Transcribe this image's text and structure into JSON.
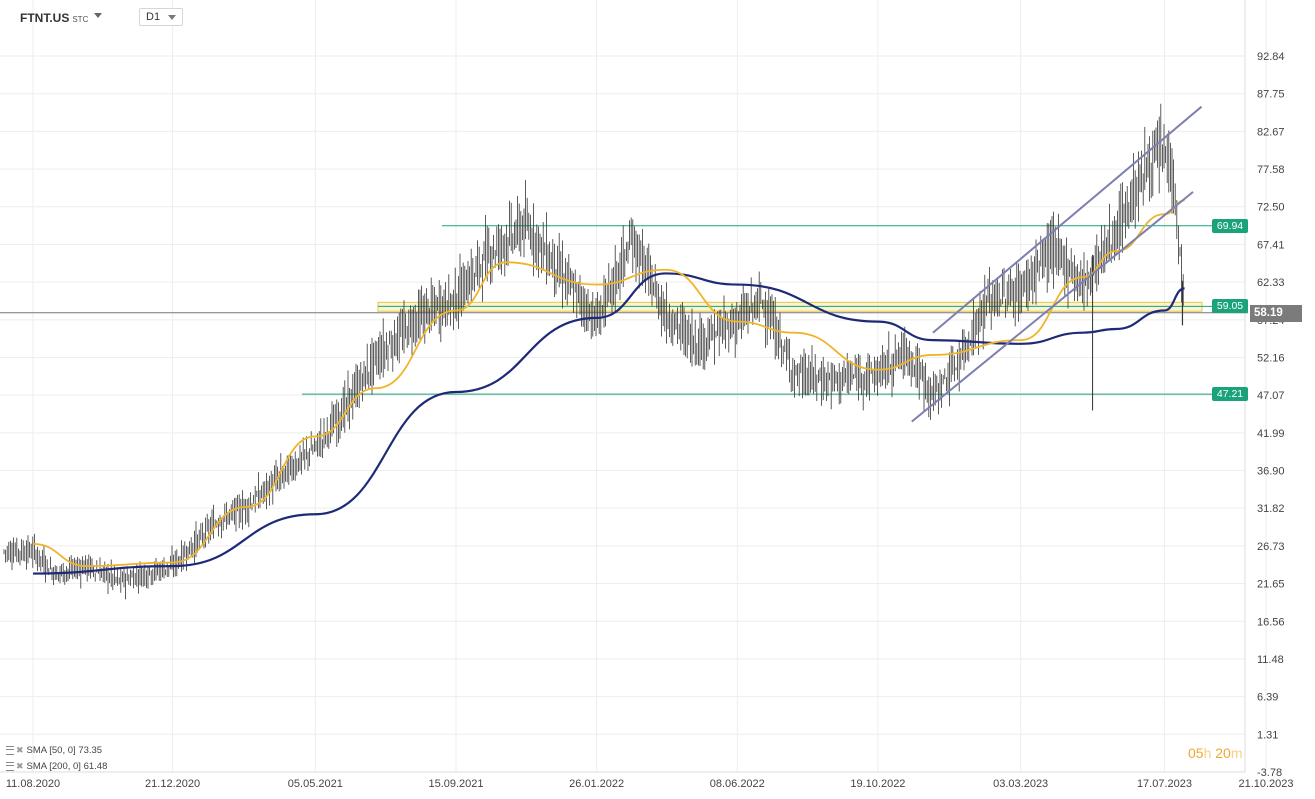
{
  "header": {
    "symbol": "FTNT.US",
    "symbol_suffix": "STC",
    "interval": "D1"
  },
  "indicators": [
    {
      "label": "SMA",
      "params": "[50, 0]",
      "value": "73.35",
      "color": "#f0b429"
    },
    {
      "label": "SMA",
      "params": "[200, 0]",
      "value": "61.48",
      "color": "#1e2a78"
    }
  ],
  "timer": {
    "hours": "05",
    "h_unit": "h",
    "minutes": "20",
    "m_unit": "m"
  },
  "levels": [
    {
      "value": 69.94,
      "label": "69.94",
      "color": "#1aa37a"
    },
    {
      "value": 59.05,
      "label": "59.05",
      "color": "#1aa37a"
    },
    {
      "value": 47.21,
      "label": "47.21",
      "color": "#1aa37a"
    }
  ],
  "current_price": {
    "value": 58.19,
    "label": "58.19"
  },
  "colors": {
    "candle": "#333333",
    "sma50": "#f0b429",
    "sma200": "#1e2a78",
    "channel": "#7c7fb0",
    "zone": "#f2e07a",
    "grid": "#eeeeee"
  },
  "chart_data": {
    "type": "line",
    "title": "",
    "xlabel": "",
    "ylabel": "",
    "ylim": [
      -3.78,
      96.0
    ],
    "y_ticks": [
      "92.84",
      "87.75",
      "82.67",
      "77.58",
      "72.50",
      "67.41",
      "62.33",
      "57.24",
      "52.16",
      "47.07",
      "41.99",
      "36.90",
      "31.82",
      "26.73",
      "21.65",
      "16.56",
      "11.48",
      "6.39",
      "1.31",
      "-3.78"
    ],
    "x_ticks": [
      "11.08.2020",
      "21.12.2020",
      "05.05.2021",
      "15.09.2021",
      "26.01.2022",
      "08.06.2022",
      "19.10.2022",
      "03.03.2023",
      "17.07.2023",
      "21.10.2023"
    ],
    "series": [
      {
        "name": "SMA [50, 0]",
        "x": [
          "11.08.2020",
          "01.10.2020",
          "21.12.2020",
          "01.03.2021",
          "05.05.2021",
          "01.07.2021",
          "15.09.2021",
          "01.11.2021",
          "26.01.2022",
          "01.04.2022",
          "08.06.2022",
          "01.08.2022",
          "19.10.2022",
          "10.12.2022",
          "03.03.2023",
          "01.05.2023",
          "01.06.2023",
          "17.07.2023",
          "05.08.2023"
        ],
        "values": [
          27.0,
          24.0,
          24.5,
          32.0,
          41.5,
          48.0,
          58.5,
          65.0,
          62.0,
          64.0,
          57.0,
          55.5,
          50.5,
          52.5,
          54.5,
          63.0,
          66.5,
          71.5,
          73.35
        ]
      },
      {
        "name": "SMA [200, 0]",
        "x": [
          "11.08.2020",
          "21.12.2020",
          "05.05.2021",
          "15.09.2021",
          "26.01.2022",
          "01.04.2022",
          "08.06.2022",
          "19.10.2022",
          "10.12.2022",
          "03.03.2023",
          "01.05.2023",
          "01.06.2023",
          "17.07.2023",
          "05.08.2023"
        ],
        "values": [
          23.0,
          24.0,
          31.0,
          47.5,
          57.5,
          63.5,
          62.0,
          57.0,
          54.5,
          54.0,
          55.5,
          56.0,
          58.5,
          61.48
        ]
      },
      {
        "name": "price",
        "x": [
          "11.08.2020",
          "01.09.2020",
          "01.10.2020",
          "01.11.2020",
          "21.12.2020",
          "01.02.2021",
          "01.03.2021",
          "05.05.2021",
          "01.06.2021",
          "01.07.2021",
          "15.08.2021",
          "15.09.2021",
          "15.10.2021",
          "20.11.2021",
          "26.12.2021",
          "26.01.2022",
          "01.03.2022",
          "01.04.2022",
          "01.05.2022",
          "08.06.2022",
          "01.07.2022",
          "01.08.2022",
          "01.09.2022",
          "19.10.2022",
          "15.11.2022",
          "10.12.2022",
          "01.01.2023",
          "01.02.2023",
          "03.03.2023",
          "01.04.2023",
          "01.05.2023",
          "01.06.2023",
          "01.07.2023",
          "17.07.2023",
          "25.07.2023",
          "05.08.2023"
        ],
        "values": [
          26,
          23,
          24,
          22,
          24,
          30,
          32,
          40,
          45,
          52,
          58,
          60,
          66,
          70,
          63,
          57,
          68,
          58,
          54,
          57,
          60,
          50,
          49,
          50,
          53,
          47,
          51,
          60,
          61,
          67,
          62,
          69,
          78,
          80,
          77,
          58.19
        ]
      }
    ],
    "annotations": [
      "69.94",
      "59.05",
      "47.21",
      "58.19"
    ],
    "grid": true
  }
}
